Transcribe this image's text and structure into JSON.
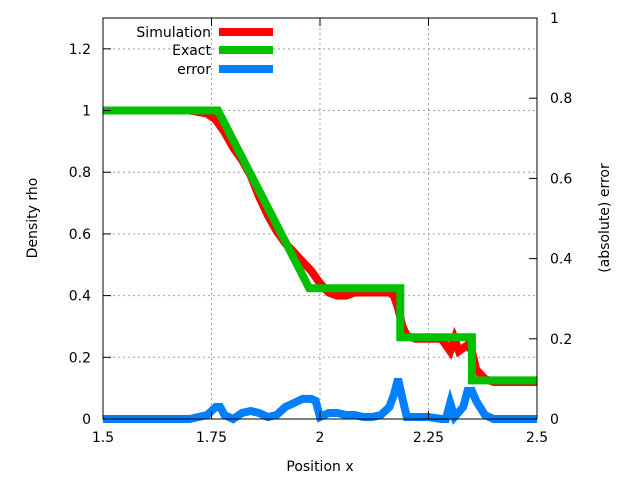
{
  "chart_data": {
    "type": "line",
    "title": "",
    "xlabel": "Position x",
    "ylabel": "Density rho",
    "y2label": "(absolute) error",
    "xlim": [
      1.5,
      2.5
    ],
    "ylim": [
      0,
      1.3
    ],
    "y2lim": [
      0,
      1
    ],
    "xticks": [
      "1.5",
      "1.75",
      "2",
      "2.25",
      "2.5"
    ],
    "yticks": [
      "0",
      "0.2",
      "0.4",
      "0.6",
      "0.8",
      "1",
      "1.2"
    ],
    "y2ticks": [
      "0",
      "0.2",
      "0.4",
      "0.6",
      "0.8",
      "1"
    ],
    "grid": true,
    "legend_position": "top-left",
    "colors": {
      "Simulation": "#ff0000",
      "Exact": "#00c000",
      "error": "#0080ff"
    },
    "series": [
      {
        "name": "Simulation",
        "axis": "y",
        "x": [
          1.5,
          1.7,
          1.74,
          1.76,
          1.78,
          1.8,
          1.82,
          1.84,
          1.86,
          1.88,
          1.9,
          1.92,
          1.94,
          1.96,
          1.98,
          2.0,
          2.02,
          2.04,
          2.06,
          2.08,
          2.1,
          2.12,
          2.14,
          2.16,
          2.17,
          2.18,
          2.19,
          2.2,
          2.22,
          2.25,
          2.28,
          2.29,
          2.3,
          2.31,
          2.32,
          2.34,
          2.35,
          2.36,
          2.38,
          2.4,
          2.45,
          2.5
        ],
        "y": [
          1.0,
          1.0,
          0.99,
          0.97,
          0.93,
          0.88,
          0.84,
          0.79,
          0.72,
          0.66,
          0.61,
          0.57,
          0.54,
          0.51,
          0.48,
          0.44,
          0.41,
          0.4,
          0.4,
          0.41,
          0.41,
          0.41,
          0.41,
          0.41,
          0.4,
          0.36,
          0.3,
          0.27,
          0.26,
          0.26,
          0.26,
          0.24,
          0.22,
          0.26,
          0.22,
          0.24,
          0.22,
          0.16,
          0.13,
          0.12,
          0.12,
          0.12
        ]
      },
      {
        "name": "Exact",
        "axis": "y",
        "x": [
          1.5,
          1.765,
          1.975,
          1.975,
          2.185,
          2.185,
          2.35,
          2.35,
          2.5
        ],
        "y": [
          1.0,
          1.0,
          0.424,
          0.424,
          0.424,
          0.265,
          0.265,
          0.125,
          0.125
        ],
        "step_points": [
          [
            2.185,
            0.424
          ],
          [
            2.185,
            0.265
          ],
          [
            2.35,
            0.265
          ],
          [
            2.35,
            0.125
          ]
        ]
      },
      {
        "name": "error",
        "axis": "y2",
        "x": [
          1.5,
          1.7,
          1.74,
          1.76,
          1.77,
          1.78,
          1.8,
          1.82,
          1.84,
          1.86,
          1.88,
          1.9,
          1.92,
          1.94,
          1.96,
          1.97,
          1.98,
          1.99,
          2.0,
          2.02,
          2.04,
          2.06,
          2.08,
          2.1,
          2.12,
          2.14,
          2.16,
          2.17,
          2.18,
          2.19,
          2.2,
          2.22,
          2.25,
          2.28,
          2.29,
          2.3,
          2.31,
          2.33,
          2.34,
          2.35,
          2.36,
          2.38,
          2.4,
          2.45,
          2.5
        ],
        "y": [
          0.0,
          0.0,
          0.01,
          0.03,
          0.03,
          0.01,
          0.0,
          0.015,
          0.02,
          0.015,
          0.005,
          0.01,
          0.03,
          0.04,
          0.05,
          0.05,
          0.05,
          0.045,
          0.005,
          0.015,
          0.015,
          0.01,
          0.01,
          0.005,
          0.005,
          0.01,
          0.03,
          0.06,
          0.1,
          0.05,
          0.005,
          0.005,
          0.005,
          0.0,
          0.0,
          0.04,
          0.005,
          0.03,
          0.07,
          0.07,
          0.045,
          0.01,
          0.0,
          0.0,
          0.0
        ]
      }
    ]
  }
}
